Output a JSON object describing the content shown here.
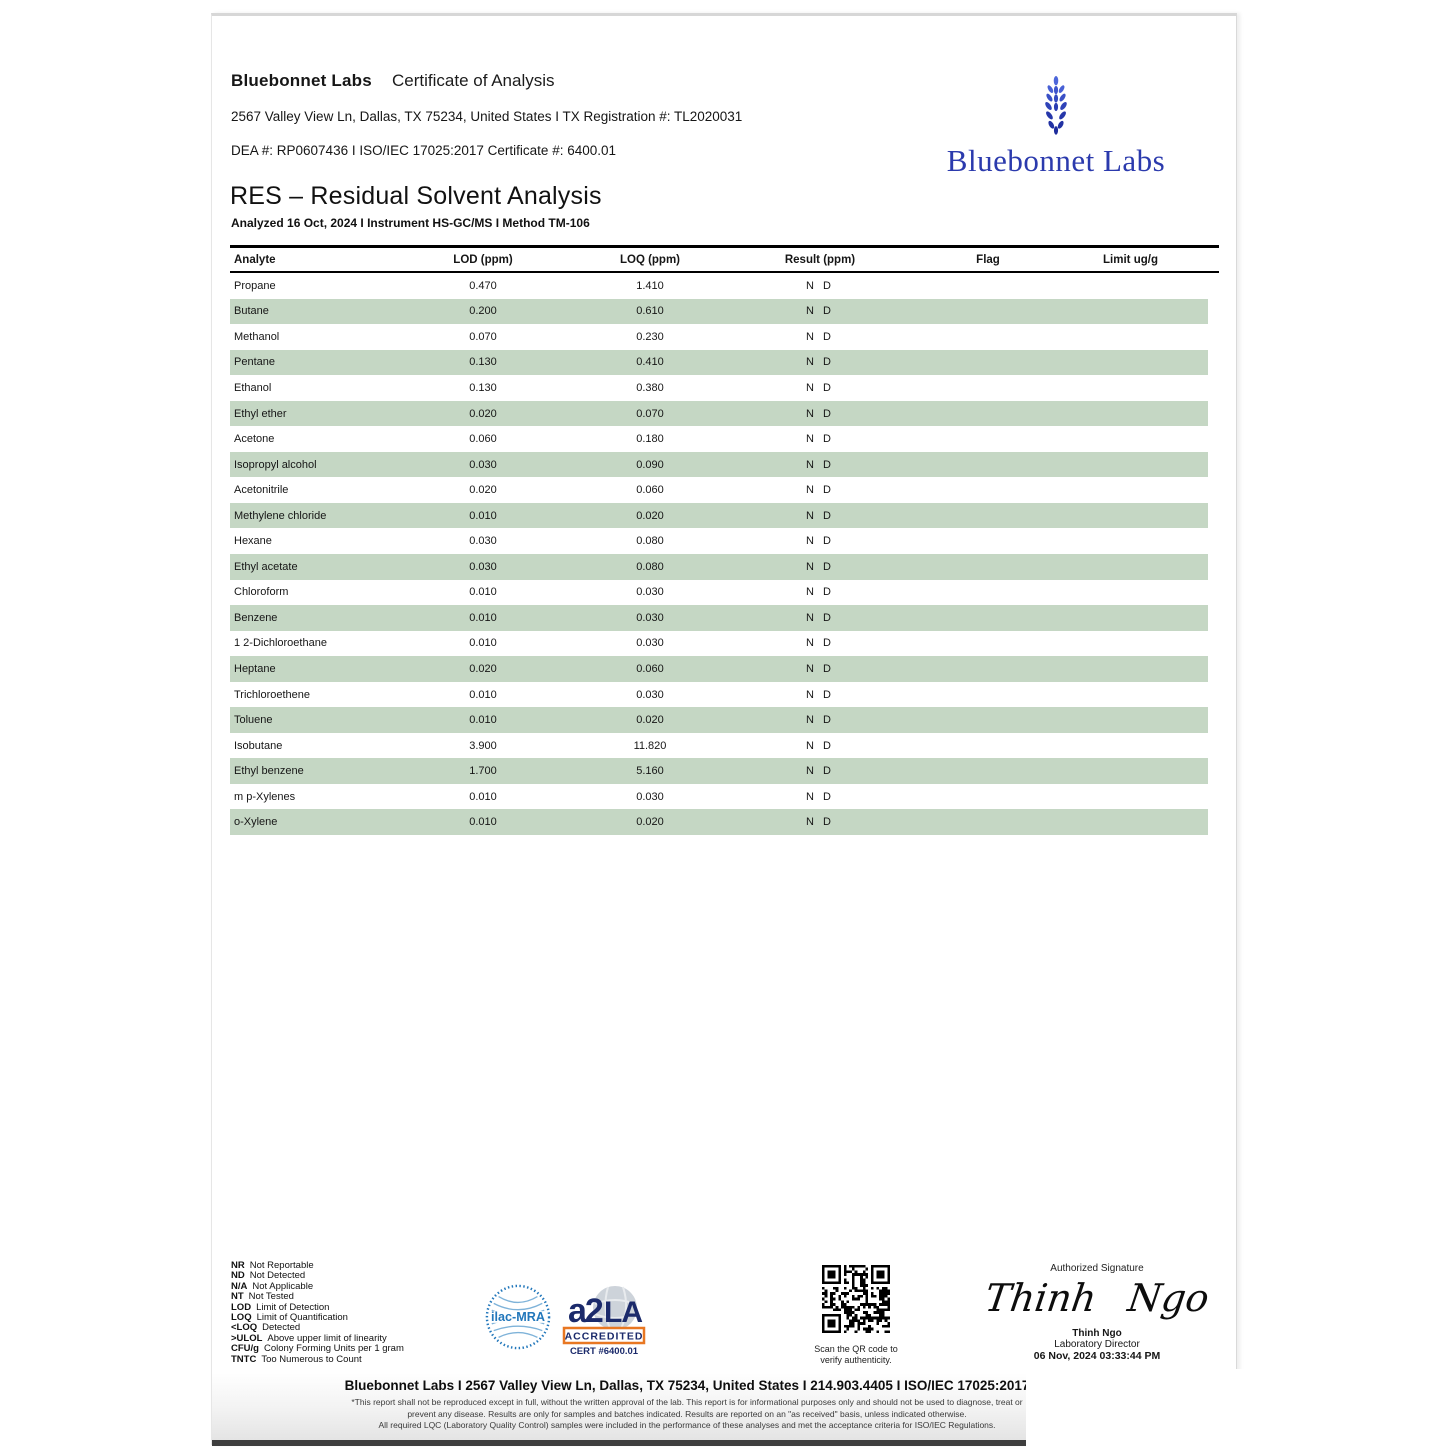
{
  "header": {
    "lab_name": "Bluebonnet Labs",
    "doc_type": "Certificate of Analysis",
    "address_line": "2567 Valley View Ln, Dallas, TX 75234, United States I TX Registration #: TL2020031",
    "dea_line": "DEA #: RP0607436 I ISO/IEC 17025:2017 Certificate #: 6400.01",
    "logo_text": "Bluebonnet Labs"
  },
  "report": {
    "title": "RES – Residual Solvent Analysis",
    "subtitle": "Analyzed 16 Oct, 2024 I Instrument HS-GC/MS I Method TM-106"
  },
  "table": {
    "headers": [
      "Analyte",
      "LOD (ppm)",
      "LOQ (ppm)",
      "Result (ppm)",
      "Flag",
      "Limit ug/g"
    ],
    "rows": [
      {
        "analyte": "Propane",
        "lod": "0.470",
        "loq": "1.410",
        "result": "N D",
        "flag": "",
        "limit": ""
      },
      {
        "analyte": "Butane",
        "lod": "0.200",
        "loq": "0.610",
        "result": "N D",
        "flag": "",
        "limit": ""
      },
      {
        "analyte": "Methanol",
        "lod": "0.070",
        "loq": "0.230",
        "result": "N D",
        "flag": "",
        "limit": ""
      },
      {
        "analyte": "Pentane",
        "lod": "0.130",
        "loq": "0.410",
        "result": "N D",
        "flag": "",
        "limit": ""
      },
      {
        "analyte": "Ethanol",
        "lod": "0.130",
        "loq": "0.380",
        "result": "N D",
        "flag": "",
        "limit": ""
      },
      {
        "analyte": "Ethyl ether",
        "lod": "0.020",
        "loq": "0.070",
        "result": "N D",
        "flag": "",
        "limit": ""
      },
      {
        "analyte": "Acetone",
        "lod": "0.060",
        "loq": "0.180",
        "result": "N D",
        "flag": "",
        "limit": ""
      },
      {
        "analyte": "Isopropyl alcohol",
        "lod": "0.030",
        "loq": "0.090",
        "result": "N D",
        "flag": "",
        "limit": ""
      },
      {
        "analyte": "Acetonitrile",
        "lod": "0.020",
        "loq": "0.060",
        "result": "N D",
        "flag": "",
        "limit": ""
      },
      {
        "analyte": "Methylene chloride",
        "lod": "0.010",
        "loq": "0.020",
        "result": "N D",
        "flag": "",
        "limit": ""
      },
      {
        "analyte": "Hexane",
        "lod": "0.030",
        "loq": "0.080",
        "result": "N D",
        "flag": "",
        "limit": ""
      },
      {
        "analyte": "Ethyl acetate",
        "lod": "0.030",
        "loq": "0.080",
        "result": "N D",
        "flag": "",
        "limit": ""
      },
      {
        "analyte": "Chloroform",
        "lod": "0.010",
        "loq": "0.030",
        "result": "N D",
        "flag": "",
        "limit": ""
      },
      {
        "analyte": "Benzene",
        "lod": "0.010",
        "loq": "0.030",
        "result": "N D",
        "flag": "",
        "limit": ""
      },
      {
        "analyte": "1 2-Dichloroethane",
        "lod": "0.010",
        "loq": "0.030",
        "result": "N D",
        "flag": "",
        "limit": ""
      },
      {
        "analyte": "Heptane",
        "lod": "0.020",
        "loq": "0.060",
        "result": "N D",
        "flag": "",
        "limit": ""
      },
      {
        "analyte": "Trichloroethene",
        "lod": "0.010",
        "loq": "0.030",
        "result": "N D",
        "flag": "",
        "limit": ""
      },
      {
        "analyte": "Toluene",
        "lod": "0.010",
        "loq": "0.020",
        "result": "N D",
        "flag": "",
        "limit": ""
      },
      {
        "analyte": "Isobutane",
        "lod": "3.900",
        "loq": "11.820",
        "result": "N D",
        "flag": "",
        "limit": ""
      },
      {
        "analyte": "Ethyl benzene",
        "lod": "1.700",
        "loq": "5.160",
        "result": "N D",
        "flag": "",
        "limit": ""
      },
      {
        "analyte": "m p-Xylenes",
        "lod": "0.010",
        "loq": "0.030",
        "result": "N D",
        "flag": "",
        "limit": ""
      },
      {
        "analyte": "o-Xylene",
        "lod": "0.010",
        "loq": "0.020",
        "result": "N D",
        "flag": "",
        "limit": ""
      }
    ]
  },
  "legend": [
    {
      "abbr": "NR",
      "text": "Not Reportable"
    },
    {
      "abbr": "ND",
      "text": "Not Detected"
    },
    {
      "abbr": "N/A",
      "text": "Not Applicable"
    },
    {
      "abbr": "NT",
      "text": "Not Tested"
    },
    {
      "abbr": "LOD",
      "text": "Limit of Detection"
    },
    {
      "abbr": "LOQ",
      "text": "Limit of Quantification"
    },
    {
      "abbr": "<LOQ",
      "text": "Detected"
    },
    {
      "abbr": ">ULOL",
      "text": "Above upper limit of linearity"
    },
    {
      "abbr": "CFU/g",
      "text": "Colony Forming Units per 1 gram"
    },
    {
      "abbr": "TNTC",
      "text": "Too Numerous to Count"
    }
  ],
  "badges": {
    "ilac_label": "ilac-MRA",
    "a2la_accredited": "ACCREDITED",
    "a2la_cert": "CERT #6400.01"
  },
  "qr": {
    "caption_line1": "Scan the QR code to",
    "caption_line2": "verify authenticity."
  },
  "signature": {
    "label": "Authorized Signature",
    "script": "Thinh Ngo",
    "name": "Thinh Ngo",
    "title": "Laboratory Director",
    "datetime": "06 Nov, 2024 03:33:44 PM"
  },
  "footer": {
    "contact": "Bluebonnet Labs I 2567 Valley View Ln, Dallas, TX 75234, United States I 214.903.4405 I ISO/IEC 17025:2017",
    "disclaimer1": "*This report shall not be reproduced except in full, without the written approval of the lab. This report is for informational purposes only and should not be used to diagnose, treat or",
    "disclaimer2": "prevent any disease. Results are only for samples and batches indicated. Results are reported on an \"as received\" basis, unless indicated otherwise.",
    "disclaimer3": "All required LQC (Laboratory Quality Control) samples were included in the performance of these analyses and met the acceptance criteria for ISO/IEC Regulations."
  },
  "colors": {
    "row_green": "#c5d7c4",
    "logo_blue": "#2b3aad",
    "ilac_blue": "#2277bb",
    "a2la_navy": "#1b2a6b",
    "accent_orange": "#e87722",
    "footer_bar": "#3e3e3e"
  }
}
